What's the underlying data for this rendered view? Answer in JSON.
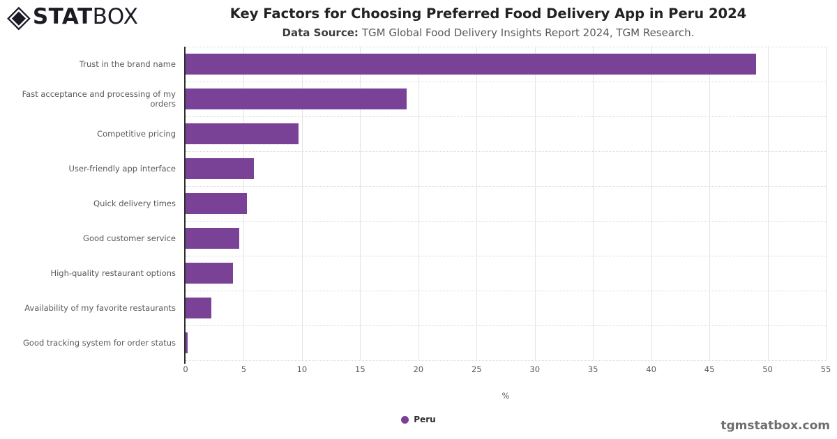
{
  "brand": {
    "diamond_icon": "◈",
    "logo_stat": "STAT",
    "logo_box": "BOX"
  },
  "header": {
    "title": "Key Factors for Choosing Preferred Food Delivery App in Peru 2024",
    "subtitle_label": "Data Source:",
    "subtitle_text": "TGM Global Food Delivery Insights Report 2024, TGM Research."
  },
  "chart_data": {
    "type": "bar",
    "orientation": "horizontal",
    "title": "Key Factors for Choosing Preferred Food Delivery App in Peru 2024",
    "categories": [
      "Trust in the brand name",
      "Fast acceptance and processing of my orders",
      "Competitive pricing",
      "User-friendly app interface",
      "Quick delivery times",
      "Good customer service",
      "High-quality restaurant options",
      "Availability of my favorite restaurants",
      "Good tracking system for order status"
    ],
    "series": [
      {
        "name": "Peru",
        "values": [
          49,
          19,
          9.7,
          5.9,
          5.3,
          4.6,
          4.1,
          2.2,
          0.2
        ]
      }
    ],
    "xlabel": "%",
    "ylabel": "",
    "xlim": [
      0,
      55
    ],
    "xticks": [
      0,
      5,
      10,
      15,
      20,
      25,
      30,
      35,
      40,
      45,
      50,
      55
    ],
    "grid": true,
    "legend_position": "bottom",
    "colors": {
      "bar": "#7a4296",
      "gridline": "#e4e4e4",
      "axis": "#2e2e2e"
    }
  },
  "footer": {
    "watermark": "tgmstatbox.com"
  }
}
